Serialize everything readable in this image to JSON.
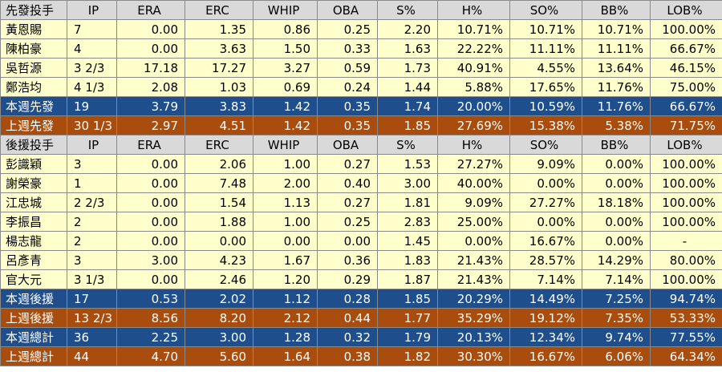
{
  "headers": {
    "starters": [
      "先發投手",
      "IP",
      "ERA",
      "ERC",
      "WHIP",
      "OBA",
      "S%",
      "H%",
      "SO%",
      "BB%",
      "LOB%"
    ],
    "relievers": [
      "後援投手",
      "IP",
      "ERA",
      "ERC",
      "WHIP",
      "OBA",
      "S%",
      "H%",
      "SO%",
      "BB%",
      "LOB%"
    ]
  },
  "starters": [
    [
      "黃恩賜",
      "7",
      "0.00",
      "1.35",
      "0.86",
      "0.25",
      "2.20",
      "10.71%",
      "10.71%",
      "10.71%",
      "100.00%"
    ],
    [
      "陳柏豪",
      "4",
      "0.00",
      "3.63",
      "1.50",
      "0.33",
      "1.63",
      "22.22%",
      "11.11%",
      "11.11%",
      "66.67%"
    ],
    [
      "吳哲源",
      "3 2/3",
      "17.18",
      "17.27",
      "3.27",
      "0.59",
      "1.73",
      "40.91%",
      "4.55%",
      "13.64%",
      "46.15%"
    ],
    [
      "鄭浩均",
      "4 1/3",
      "2.08",
      "1.03",
      "0.69",
      "0.24",
      "1.44",
      "5.88%",
      "17.65%",
      "11.76%",
      "75.00%"
    ]
  ],
  "starter_summary": [
    [
      "本週先發",
      "19",
      "3.79",
      "3.83",
      "1.42",
      "0.35",
      "1.74",
      "20.00%",
      "10.59%",
      "11.76%",
      "66.67%"
    ],
    [
      "上週先發",
      "30 1/3",
      "2.97",
      "4.51",
      "1.42",
      "0.35",
      "1.85",
      "27.69%",
      "15.38%",
      "5.38%",
      "71.75%"
    ]
  ],
  "relievers": [
    [
      "彭識穎",
      "3",
      "0.00",
      "2.06",
      "1.00",
      "0.27",
      "1.53",
      "27.27%",
      "9.09%",
      "0.00%",
      "100.00%"
    ],
    [
      "謝榮豪",
      "1",
      "0.00",
      "7.48",
      "2.00",
      "0.40",
      "3.00",
      "40.00%",
      "0.00%",
      "0.00%",
      "100.00%"
    ],
    [
      "江忠城",
      "2 2/3",
      "0.00",
      "1.54",
      "1.13",
      "0.27",
      "1.81",
      "9.09%",
      "27.27%",
      "18.18%",
      "100.00%"
    ],
    [
      "李振昌",
      "2",
      "0.00",
      "1.88",
      "1.00",
      "0.25",
      "2.83",
      "25.00%",
      "0.00%",
      "0.00%",
      "100.00%"
    ],
    [
      "楊志龍",
      "2",
      "0.00",
      "0.00",
      "0.00",
      "0.00",
      "1.45",
      "0.00%",
      "16.67%",
      "0.00%",
      "-"
    ],
    [
      "呂彥青",
      "3",
      "3.00",
      "4.23",
      "1.67",
      "0.36",
      "1.83",
      "21.43%",
      "28.57%",
      "14.29%",
      "80.00%"
    ],
    [
      "官大元",
      "3 1/3",
      "0.00",
      "2.46",
      "1.20",
      "0.29",
      "1.87",
      "21.43%",
      "7.14%",
      "7.14%",
      "100.00%"
    ]
  ],
  "reliever_summary": [
    [
      "本週後援",
      "17",
      "0.53",
      "2.02",
      "1.12",
      "0.28",
      "1.85",
      "20.29%",
      "14.49%",
      "7.25%",
      "94.74%"
    ],
    [
      "上週後援",
      "13 2/3",
      "8.56",
      "8.20",
      "2.12",
      "0.44",
      "1.77",
      "35.29%",
      "19.12%",
      "7.35%",
      "53.33%"
    ]
  ],
  "totals": [
    [
      "本週總計",
      "36",
      "2.25",
      "3.00",
      "1.28",
      "0.32",
      "1.79",
      "20.13%",
      "12.34%",
      "9.74%",
      "77.55%"
    ],
    [
      "上週總計",
      "44",
      "4.70",
      "5.60",
      "1.64",
      "0.38",
      "1.82",
      "30.30%",
      "16.67%",
      "6.06%",
      "64.34%"
    ]
  ],
  "colors": {
    "header_bg": "#d9d9d9",
    "row_bg": "#ffffcc",
    "this_week_bg": "#1f4e8c",
    "last_week_bg": "#a84d0e"
  }
}
